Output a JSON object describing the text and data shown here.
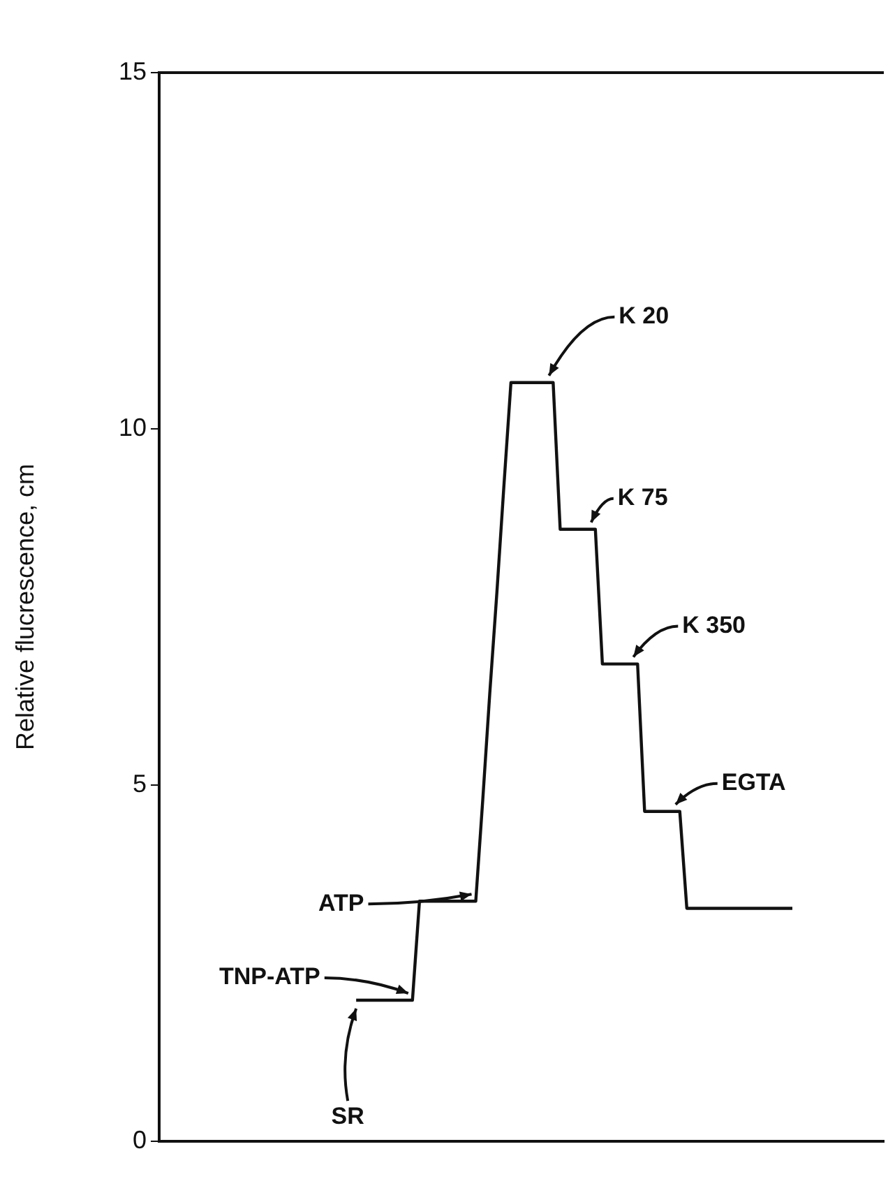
{
  "chart_data": {
    "type": "line",
    "ylabel": "Relative flucrescence, cm",
    "categories": [
      null,
      null,
      null,
      null,
      null,
      null,
      null,
      null,
      null,
      null,
      null,
      null,
      null,
      null,
      null,
      null,
      null,
      null,
      null,
      null,
      null,
      null,
      null,
      null,
      null,
      null,
      null,
      null,
      null,
      null,
      null,
      null,
      null,
      null,
      null,
      null,
      null,
      null,
      null,
      null,
      null,
      null,
      null,
      null,
      null,
      null,
      null,
      null,
      null,
      null,
      null,
      null,
      null,
      null,
      null,
      null,
      null,
      null,
      null,
      null,
      null,
      null,
      null,
      null,
      null,
      null,
      null,
      null,
      null,
      null,
      null,
      null,
      null,
      null,
      null,
      null,
      null,
      null,
      null,
      null,
      null,
      null,
      null,
      null,
      null,
      null,
      null,
      null,
      null,
      null,
      null,
      null,
      null,
      null,
      null,
      null,
      null,
      null,
      null,
      null,
      null,
      null,
      null,
      null
    ],
    "series": [
      {
        "color": "#111111",
        "values": [
          null,
          null,
          null,
          null,
          null,
          null,
          null,
          null,
          null,
          null,
          null,
          null,
          null,
          null,
          null,
          null,
          null,
          null,
          null,
          null,
          null,
          null,
          null,
          null,
          null,
          null,
          null,
          null,
          1.98,
          1.98,
          1.98,
          1.98,
          1.98,
          1.98,
          1.98,
          1.98,
          1.98,
          3.37,
          3.37,
          3.37,
          3.37,
          3.37,
          3.37,
          3.37,
          3.37,
          3.37,
          4.8,
          6.3,
          7.7,
          9.2,
          10.65,
          10.65,
          10.65,
          10.65,
          10.65,
          10.65,
          10.65,
          8.59,
          8.59,
          8.59,
          8.59,
          8.59,
          8.59,
          6.7,
          6.7,
          6.7,
          6.7,
          6.7,
          6.7,
          4.63,
          4.63,
          4.63,
          4.63,
          4.63,
          4.63,
          3.27,
          3.27,
          3.27,
          3.27,
          3.27,
          3.27,
          3.27,
          3.27,
          3.27,
          3.27,
          3.27,
          3.27,
          3.27,
          3.27,
          3.27,
          3.27,
          null,
          null,
          null,
          null,
          null,
          null,
          null,
          null,
          null,
          null,
          null,
          null,
          null
        ]
      }
    ],
    "ylim": [
      0,
      15
    ],
    "yticks": [
      0,
      5,
      10,
      15
    ],
    "grid": false,
    "legend": false,
    "marker": "none",
    "line_style": "solid",
    "tick_labels": "y",
    "annotations": [
      "SR",
      "TNP-ATP",
      "ATP",
      "K 20",
      "K 75",
      "K 350",
      "EGTA"
    ]
  }
}
